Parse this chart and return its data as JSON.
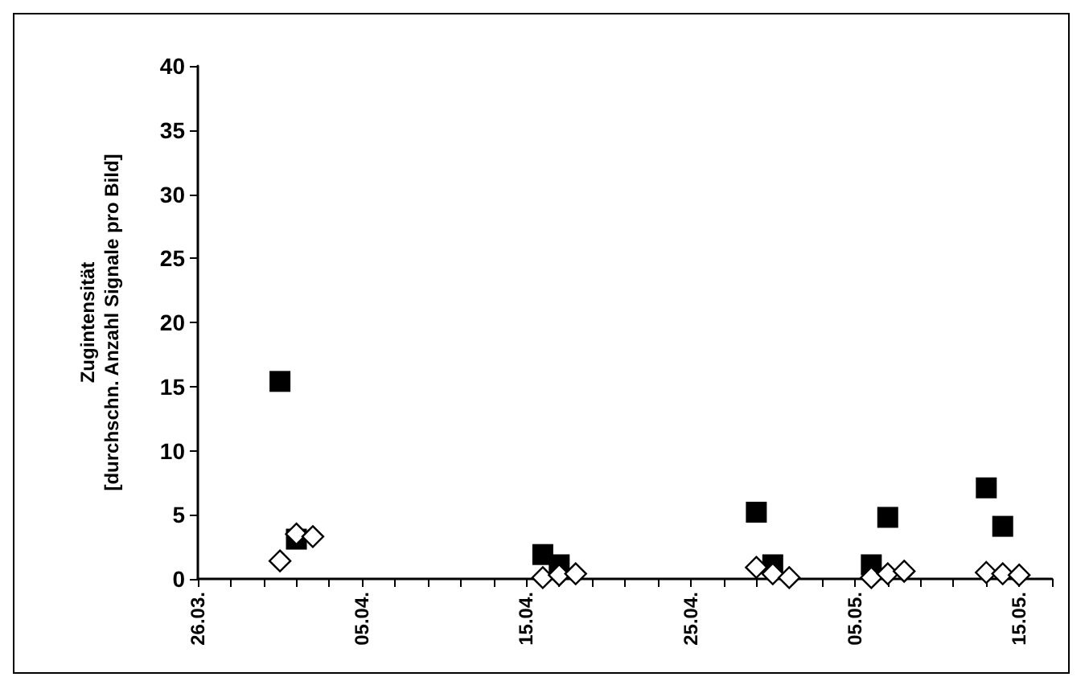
{
  "chart_data": {
    "type": "scatter",
    "ylabel": "Zugintensität\n[durchschn. Anzahl Signale pro Bild]",
    "xlim": [
      "--03-26",
      "--05-17"
    ],
    "xticks": [
      {
        "value": "--03-26",
        "label": "26.03."
      },
      {
        "value": "--03-28",
        "label": null
      },
      {
        "value": "--03-30",
        "label": null
      },
      {
        "value": "--04-01",
        "label": null
      },
      {
        "value": "--04-03",
        "label": null
      },
      {
        "value": "--04-05",
        "label": "05.04."
      },
      {
        "value": "--04-07",
        "label": null
      },
      {
        "value": "--04-09",
        "label": null
      },
      {
        "value": "--04-11",
        "label": null
      },
      {
        "value": "--04-13",
        "label": null
      },
      {
        "value": "--04-15",
        "label": "15.04."
      },
      {
        "value": "--04-17",
        "label": null
      },
      {
        "value": "--04-19",
        "label": null
      },
      {
        "value": "--04-21",
        "label": null
      },
      {
        "value": "--04-23",
        "label": null
      },
      {
        "value": "--04-25",
        "label": "25.04."
      },
      {
        "value": "--04-27",
        "label": null
      },
      {
        "value": "--04-29",
        "label": null
      },
      {
        "value": "--05-01",
        "label": null
      },
      {
        "value": "--05-03",
        "label": null
      },
      {
        "value": "--05-05",
        "label": "05.05."
      },
      {
        "value": "--05-07",
        "label": null
      },
      {
        "value": "--05-09",
        "label": null
      },
      {
        "value": "--05-11",
        "label": null
      },
      {
        "value": "--05-13",
        "label": null
      },
      {
        "value": "--05-15",
        "label": "15.05."
      },
      {
        "value": "--05-17",
        "label": null
      }
    ],
    "ylim": [
      0,
      40
    ],
    "yticks": [
      0,
      5,
      10,
      15,
      20,
      25,
      30,
      35,
      40
    ],
    "grid": false,
    "series": [
      {
        "marker": "square",
        "color": "#000000",
        "x": [
          "--03-31",
          "--04-01",
          "--04-16",
          "--04-17",
          "--04-29",
          "--04-30",
          "--05-06",
          "--05-07",
          "--05-13",
          "--05-14"
        ],
        "values": [
          15.4,
          3.1,
          1.9,
          1.1,
          5.2,
          1.1,
          1.1,
          4.8,
          7.1,
          4.1
        ]
      },
      {
        "marker": "diamond",
        "color": "#ffffff",
        "x": [
          "--03-31",
          "--04-01",
          "--04-02",
          "--04-16",
          "--04-17",
          "--04-18",
          "--04-29",
          "--04-30",
          "--05-01",
          "--05-06",
          "--05-07",
          "--05-08",
          "--05-13",
          "--05-14",
          "--05-15"
        ],
        "values": [
          1.4,
          3.5,
          3.3,
          0.1,
          0.3,
          0.4,
          0.9,
          0.4,
          0.1,
          0.1,
          0.4,
          0.6,
          0.5,
          0.4,
          0.3
        ]
      }
    ]
  }
}
